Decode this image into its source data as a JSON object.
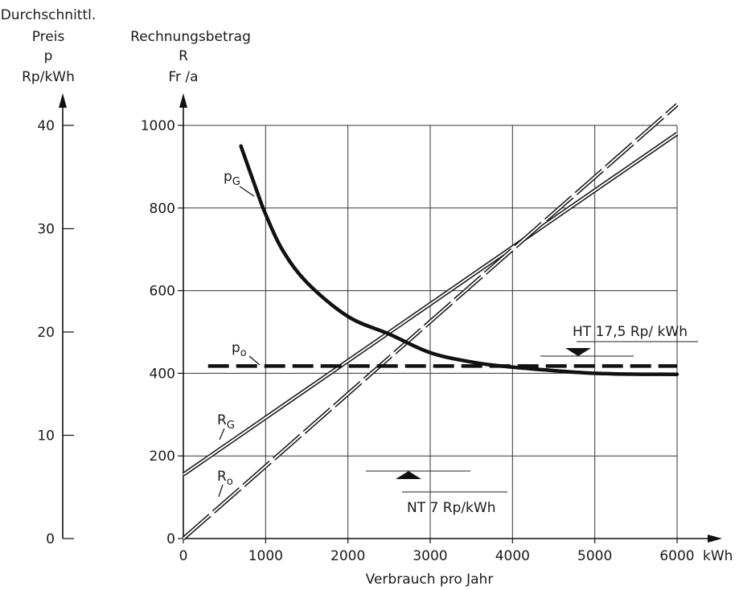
{
  "chart_data": {
    "type": "line",
    "title": "",
    "left_axis_header": [
      "Durchschnittl.",
      "Preis",
      "p",
      "Rp/kWh"
    ],
    "right_axis_header": [
      "Rechnungsbetrag",
      "R",
      "Fr /a"
    ],
    "xlabel": "Verbrauch pro Jahr",
    "x_unit": "kWh",
    "xlim": [
      0,
      6000
    ],
    "x_ticks": [
      "0",
      "1000",
      "2000",
      "3000",
      "4000",
      "5000",
      "6000"
    ],
    "ylim_R": [
      0,
      1000
    ],
    "y_ticks_R": [
      "0",
      "200",
      "400",
      "600",
      "800",
      "1000"
    ],
    "ylim_p": [
      0,
      40
    ],
    "y_ticks_p": [
      "0",
      "10",
      "20",
      "30",
      "40"
    ],
    "grid": true,
    "series": [
      {
        "name": "RG",
        "style": "double-line",
        "axis": "R",
        "x": [
          0,
          6000
        ],
        "y": [
          155,
          980
        ]
      },
      {
        "name": "Ro",
        "style": "double-dashed-line",
        "axis": "R",
        "x": [
          0,
          6000
        ],
        "y": [
          0,
          1050
        ]
      },
      {
        "name": "pG",
        "style": "thick-solid",
        "axis": "p",
        "x": [
          700,
          900,
          1000,
          1200,
          1500,
          2000,
          2500,
          3000,
          3500,
          4000,
          5000,
          6000
        ],
        "y": [
          38.0,
          33.5,
          31.4,
          28.0,
          24.8,
          21.5,
          19.8,
          18.0,
          17.1,
          16.6,
          16.0,
          15.9
        ]
      },
      {
        "name": "po",
        "style": "thick-dashed",
        "axis": "p",
        "x": [
          300,
          6000
        ],
        "y": [
          16.7,
          16.7
        ]
      }
    ],
    "series_labels": [
      {
        "id": "pG",
        "main": "p",
        "sub": "G"
      },
      {
        "id": "po",
        "main": "p",
        "sub": "o"
      },
      {
        "id": "RG",
        "main": "R",
        "sub": "G"
      },
      {
        "id": "Ro",
        "main": "R",
        "sub": "o"
      }
    ],
    "annotations": [
      {
        "id": "ht",
        "text": "HT  17,5 Rp/ kWh",
        "axis": "p",
        "value": 17.5
      },
      {
        "id": "nt",
        "text": "NT  7 Rp/kWh",
        "axis": "p",
        "value": 7
      }
    ]
  }
}
